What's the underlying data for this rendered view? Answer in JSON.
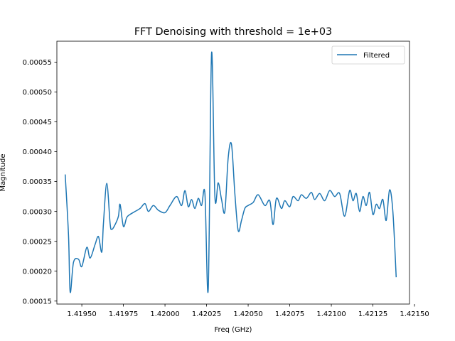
{
  "chart_data": {
    "type": "line",
    "title": "FFT Denoising with threshold = 1e+03",
    "xlabel": "Freq (GHz)",
    "ylabel": "Magnitude",
    "xlim": [
      1.41935,
      1.42147
    ],
    "ylim": [
      0.000145,
      0.000585
    ],
    "xticks": [
      1.4195,
      1.41975,
      1.42,
      1.42025,
      1.4205,
      1.42075,
      1.421,
      1.42125,
      1.4215
    ],
    "xtick_labels": [
      "1.41950",
      "1.41975",
      "1.42000",
      "1.42025",
      "1.42050",
      "1.42075",
      "1.42100",
      "1.42125",
      "1.42150"
    ],
    "yticks": [
      0.00015,
      0.0002,
      0.00025,
      0.0003,
      0.00035,
      0.0004,
      0.00045,
      0.0005,
      0.00055
    ],
    "ytick_labels": [
      "0.00015",
      "0.00020",
      "0.00025",
      "0.00030",
      "0.00035",
      "0.00040",
      "0.00045",
      "0.00050",
      "0.00055"
    ],
    "grid": false,
    "legend_position": "top-right",
    "series": [
      {
        "name": "Filtered",
        "color": "#1f77b4",
        "x": [
          1.4194,
          1.41942,
          1.41943,
          1.41945,
          1.41948,
          1.4195,
          1.41953,
          1.41955,
          1.41958,
          1.4196,
          1.41962,
          1.41963,
          1.41965,
          1.41967,
          1.41968,
          1.4197,
          1.41972,
          1.41973,
          1.41975,
          1.41977,
          1.41979,
          1.41982,
          1.41985,
          1.41988,
          1.4199,
          1.41993,
          1.41996,
          1.42,
          1.42003,
          1.42007,
          1.4201,
          1.42012,
          1.42014,
          1.42016,
          1.42018,
          1.4202,
          1.42022,
          1.42024,
          1.42026,
          1.42028,
          1.4203,
          1.42032,
          1.42034,
          1.42036,
          1.42038,
          1.4204,
          1.42042,
          1.42044,
          1.42046,
          1.42048,
          1.4205,
          1.42053,
          1.42056,
          1.4206,
          1.42063,
          1.42065,
          1.42067,
          1.4207,
          1.42072,
          1.42075,
          1.42077,
          1.4208,
          1.42082,
          1.42085,
          1.42088,
          1.4209,
          1.42093,
          1.42096,
          1.42099,
          1.42102,
          1.42105,
          1.42108,
          1.42111,
          1.42113,
          1.42115,
          1.42117,
          1.42119,
          1.42121,
          1.42123,
          1.42125,
          1.42127,
          1.42129,
          1.42131,
          1.42133,
          1.42135,
          1.42137,
          1.42139
        ],
        "values": [
          0.000362,
          0.00026,
          0.000165,
          0.000215,
          0.00022,
          0.000208,
          0.00024,
          0.000222,
          0.000245,
          0.000258,
          0.000232,
          0.00028,
          0.000347,
          0.00028,
          0.00027,
          0.000278,
          0.000292,
          0.000312,
          0.000275,
          0.00029,
          0.000295,
          0.0003,
          0.000305,
          0.000313,
          0.0003,
          0.00031,
          0.000302,
          0.000298,
          0.00031,
          0.000325,
          0.00031,
          0.000335,
          0.000308,
          0.00032,
          0.000305,
          0.000322,
          0.00031,
          0.00033,
          0.00017,
          0.000565,
          0.000325,
          0.000348,
          0.00032,
          0.0003,
          0.00039,
          0.000412,
          0.00033,
          0.000268,
          0.000285,
          0.000305,
          0.00031,
          0.000315,
          0.000328,
          0.00031,
          0.000318,
          0.000278,
          0.000322,
          0.000305,
          0.000318,
          0.000308,
          0.000325,
          0.000318,
          0.000328,
          0.000322,
          0.000332,
          0.00032,
          0.00033,
          0.000318,
          0.000335,
          0.000325,
          0.00033,
          0.000292,
          0.000335,
          0.000318,
          0.00033,
          0.0003,
          0.000325,
          0.00031,
          0.000332,
          0.000295,
          0.000312,
          0.000305,
          0.00032,
          0.000285,
          0.000336,
          0.0003,
          0.00019
        ]
      }
    ]
  }
}
